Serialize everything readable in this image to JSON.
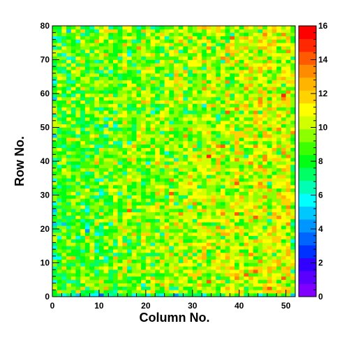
{
  "chart_data": {
    "type": "heatmap",
    "title": "",
    "xlabel": "Column No.",
    "ylabel": "Row No.",
    "xlim": [
      0,
      52
    ],
    "ylim": [
      0,
      80
    ],
    "x_ticks": [
      "0",
      "10",
      "20",
      "30",
      "40",
      "50"
    ],
    "y_ticks": [
      "0",
      "10",
      "20",
      "30",
      "40",
      "50",
      "60",
      "70",
      "80"
    ],
    "colorbar": {
      "min": 0,
      "max": 16,
      "ticks": [
        "0",
        "2",
        "4",
        "6",
        "8",
        "10",
        "12",
        "14",
        "16"
      ],
      "palette": [
        "#7f00ff",
        "#5a00ff",
        "#3200ff",
        "#0032ff",
        "#0064ff",
        "#0096ff",
        "#00c8ff",
        "#00ffff",
        "#00ffb4",
        "#00ff64",
        "#00ff14",
        "#3cff00",
        "#8cff00",
        "#d2ff00",
        "#ffff00",
        "#ffd200",
        "#ffb400",
        "#ff8c00",
        "#ff5a00",
        "#ff2800",
        "#ff0000"
      ]
    },
    "cells": {
      "n_columns": 52,
      "n_rows": 80,
      "typical_value": 9.5,
      "value_range": [
        0,
        16
      ],
      "trend": "values increase slightly toward higher column numbers (around 10-12 for columns 30-52, around 8-10 for columns 0-25)"
    },
    "grid": false
  }
}
